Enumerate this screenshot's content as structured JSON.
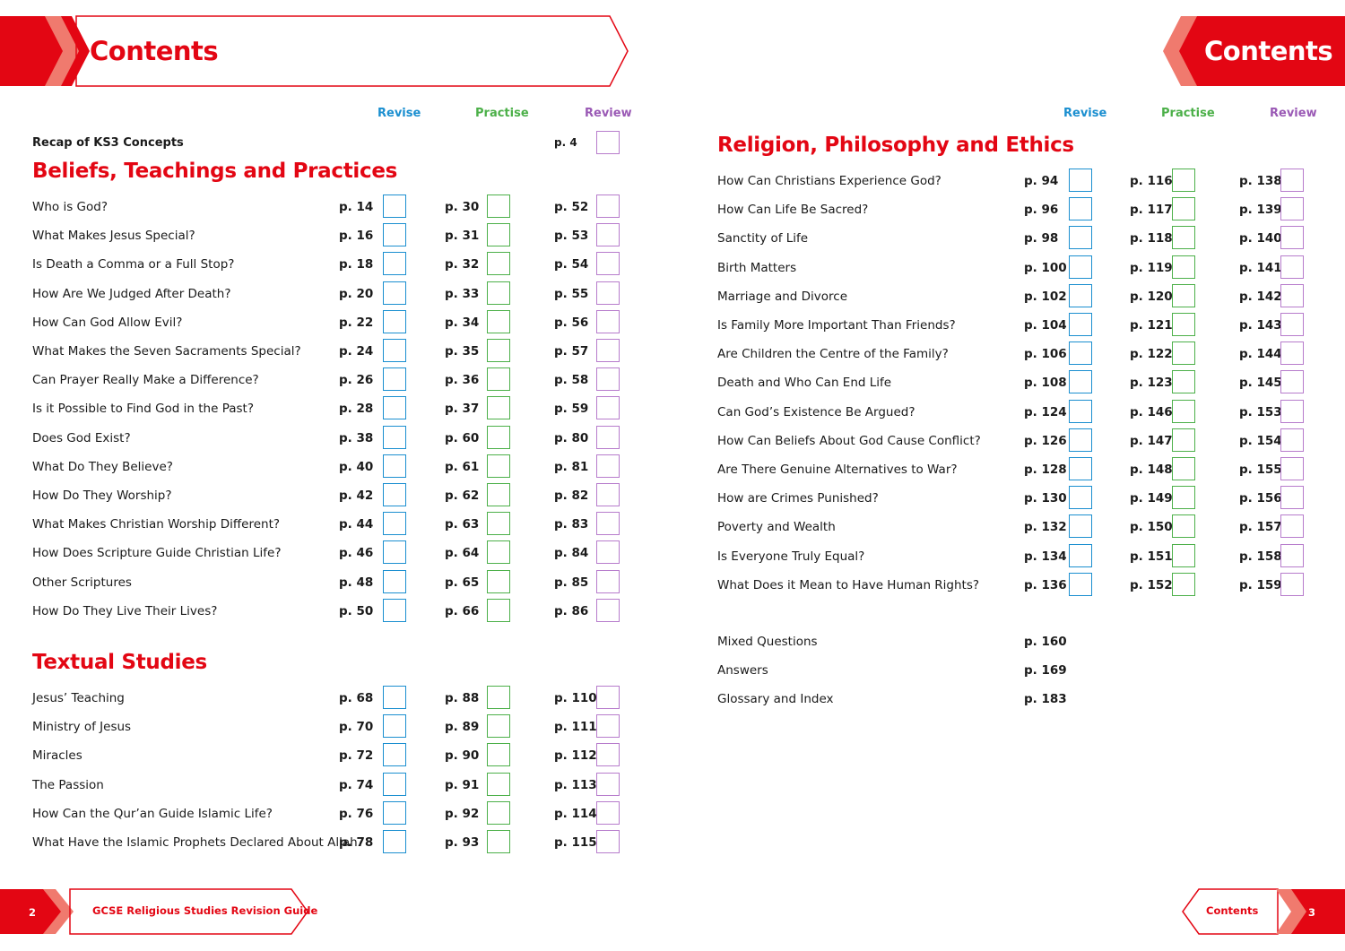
{
  "header": {
    "left_title": "Contents",
    "right_title": "Contents"
  },
  "columns": {
    "revise": "Revise",
    "practise": "Practise",
    "review": "Review"
  },
  "colors": {
    "red": "#e30613",
    "revise": "#1b8fd0",
    "practise": "#4cb049",
    "review": "#9a59b5"
  },
  "left": {
    "recap": {
      "label": "Recap of KS3 Concepts",
      "review": "p. 4"
    },
    "section1": {
      "title": "Beliefs, Teachings and Practices",
      "rows": [
        {
          "label": "Who is God?",
          "revise": "p. 14",
          "practise": "p. 30",
          "review": "p. 52"
        },
        {
          "label": "What Makes Jesus Special?",
          "revise": "p. 16",
          "practise": "p. 31",
          "review": "p. 53"
        },
        {
          "label": "Is Death a Comma or a Full Stop?",
          "revise": "p. 18",
          "practise": "p. 32",
          "review": "p. 54"
        },
        {
          "label": "How Are We Judged After Death?",
          "revise": "p. 20",
          "practise": "p. 33",
          "review": "p. 55"
        },
        {
          "label": "How Can God Allow Evil?",
          "revise": "p. 22",
          "practise": "p. 34",
          "review": "p. 56"
        },
        {
          "label": "What Makes the Seven Sacraments Special?",
          "revise": "p. 24",
          "practise": "p. 35",
          "review": "p. 57"
        },
        {
          "label": "Can Prayer Really Make a Difference?",
          "revise": "p. 26",
          "practise": "p. 36",
          "review": "p. 58"
        },
        {
          "label": "Is it Possible to Find God in the Past?",
          "revise": "p. 28",
          "practise": "p. 37",
          "review": "p. 59"
        },
        {
          "label": "Does God Exist?",
          "revise": "p. 38",
          "practise": "p. 60",
          "review": "p. 80"
        },
        {
          "label": "What Do They Believe?",
          "revise": "p. 40",
          "practise": "p. 61",
          "review": "p. 81"
        },
        {
          "label": "How Do They Worship?",
          "revise": "p. 42",
          "practise": "p. 62",
          "review": "p. 82"
        },
        {
          "label": "What Makes Christian Worship Different?",
          "revise": "p. 44",
          "practise": "p. 63",
          "review": "p. 83"
        },
        {
          "label": "How Does Scripture Guide Christian Life?",
          "revise": "p. 46",
          "practise": "p. 64",
          "review": "p. 84"
        },
        {
          "label": "Other Scriptures",
          "revise": "p. 48",
          "practise": "p. 65",
          "review": "p. 85"
        },
        {
          "label": "How Do They Live Their Lives?",
          "revise": "p. 50",
          "practise": "p. 66",
          "review": "p. 86"
        }
      ]
    },
    "section2": {
      "title": "Textual Studies",
      "rows": [
        {
          "label": "Jesus’ Teaching",
          "revise": "p. 68",
          "practise": "p. 88",
          "review": "p. 110"
        },
        {
          "label": "Ministry of Jesus",
          "revise": "p. 70",
          "practise": "p. 89",
          "review": "p. 111"
        },
        {
          "label": "Miracles",
          "revise": "p. 72",
          "practise": "p. 90",
          "review": "p. 112"
        },
        {
          "label": "The Passion",
          "revise": "p. 74",
          "practise": "p. 91",
          "review": "p. 113"
        },
        {
          "label": "How Can the Qur’an Guide Islamic Life?",
          "revise": "p. 76",
          "practise": "p. 92",
          "review": "p. 114"
        },
        {
          "label": "What Have the Islamic Prophets Declared About Allah?",
          "revise": "p. 78",
          "practise": "p. 93",
          "review": "p. 115"
        }
      ]
    },
    "footer": {
      "page_number": "2",
      "book_title": "GCSE Religious Studies Revision Guide"
    }
  },
  "right": {
    "section3": {
      "title": "Religion, Philosophy and Ethics",
      "rows": [
        {
          "label": "How Can Christians Experience God?",
          "revise": "p. 94",
          "practise": "p. 116",
          "review": "p. 138"
        },
        {
          "label": "How Can Life Be Sacred?",
          "revise": "p. 96",
          "practise": "p. 117",
          "review": "p. 139"
        },
        {
          "label": "Sanctity of Life",
          "revise": "p. 98",
          "practise": "p. 118",
          "review": "p. 140"
        },
        {
          "label": "Birth Matters",
          "revise": "p. 100",
          "practise": "p. 119",
          "review": "p. 141"
        },
        {
          "label": "Marriage and Divorce",
          "revise": "p. 102",
          "practise": "p. 120",
          "review": "p. 142"
        },
        {
          "label": "Is Family More Important Than Friends?",
          "revise": "p. 104",
          "practise": "p. 121",
          "review": "p. 143"
        },
        {
          "label": "Are Children the Centre of the Family?",
          "revise": "p. 106",
          "practise": "p. 122",
          "review": "p. 144"
        },
        {
          "label": "Death and Who Can End Life",
          "revise": "p. 108",
          "practise": "p. 123",
          "review": "p. 145"
        },
        {
          "label": "Can God’s Existence Be Argued?",
          "revise": "p. 124",
          "practise": "p. 146",
          "review": "p. 153"
        },
        {
          "label": "How Can Beliefs About God Cause Conflict?",
          "revise": "p. 126",
          "practise": "p. 147",
          "review": "p. 154"
        },
        {
          "label": "Are There Genuine Alternatives to War?",
          "revise": "p. 128",
          "practise": "p. 148",
          "review": "p. 155"
        },
        {
          "label": "How are Crimes Punished?",
          "revise": "p. 130",
          "practise": "p. 149",
          "review": "p. 156"
        },
        {
          "label": "Poverty and Wealth",
          "revise": "p. 132",
          "practise": "p. 150",
          "review": "p. 157"
        },
        {
          "label": "Is Everyone Truly Equal?",
          "revise": "p. 134",
          "practise": "p. 151",
          "review": "p. 158"
        },
        {
          "label": "What Does it Mean to Have Human Rights?",
          "revise": "p. 136",
          "practise": "p. 152",
          "review": "p. 159"
        }
      ]
    },
    "extras": [
      {
        "label": "Mixed Questions",
        "page": "p. 160"
      },
      {
        "label": "Answers",
        "page": "p. 169"
      },
      {
        "label": "Glossary and Index",
        "page": "p. 183"
      }
    ],
    "footer": {
      "page_number": "3",
      "label": "Contents"
    }
  }
}
